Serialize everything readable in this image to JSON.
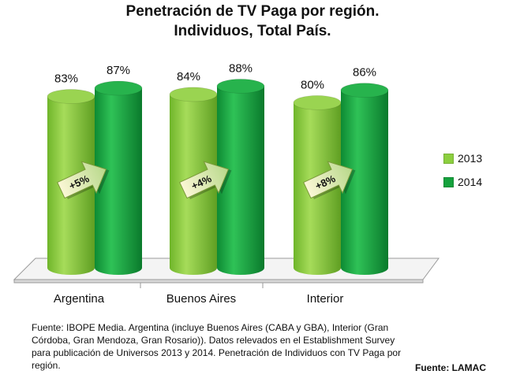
{
  "title": {
    "line1": "Penetración de TV Paga por región.",
    "line2": "Individuos, Total País."
  },
  "chart_data": {
    "type": "bar",
    "categories": [
      "Argentina",
      "Buenos Aires",
      "Interior"
    ],
    "series": [
      {
        "name": "2013",
        "values": [
          83,
          84,
          80
        ],
        "labels": [
          "83%",
          "84%",
          "80%"
        ],
        "color": "#8ccf3f"
      },
      {
        "name": "2014",
        "values": [
          87,
          88,
          86
        ],
        "labels": [
          "87%",
          "88%",
          "86%"
        ],
        "color": "#15a23d"
      }
    ],
    "changes": [
      "+5%",
      "+4%",
      "+8%"
    ],
    "ylim": [
      0,
      100
    ],
    "legend_position": "right",
    "grid": false,
    "style": "3d-cylinder"
  },
  "source_note": "Fuente: IBOPE Media. Argentina (incluye Buenos Aires (CABA y GBA), Interior (Gran Córdoba, Gran Mendoza, Gran Rosario)).  Datos relevados en el Establishment Survey para publicación de Universos 2013 y 2014. Penetración de Individuos con TV Paga por región.",
  "source_short": "Fuente:  LAMAC"
}
